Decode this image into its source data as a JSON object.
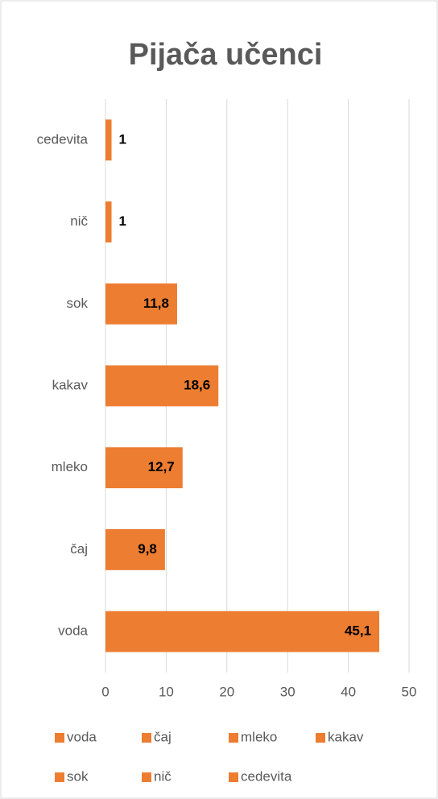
{
  "chart_data": {
    "type": "bar",
    "orientation": "horizontal",
    "title": "Pijača učenci",
    "categories": [
      "voda",
      "čaj",
      "mleko",
      "kakav",
      "sok",
      "nič",
      "cedevita"
    ],
    "values": [
      45.1,
      9.8,
      12.7,
      18.6,
      11.8,
      1,
      1
    ],
    "value_labels": [
      "45,1",
      "9,8",
      "12,7",
      "18,6",
      "11,8",
      "1",
      "1"
    ],
    "color": "#ed7d31",
    "xlim": [
      0,
      50
    ],
    "xticks": [
      0,
      10,
      20,
      30,
      40,
      50
    ],
    "grid": true,
    "legend": "bottom"
  }
}
